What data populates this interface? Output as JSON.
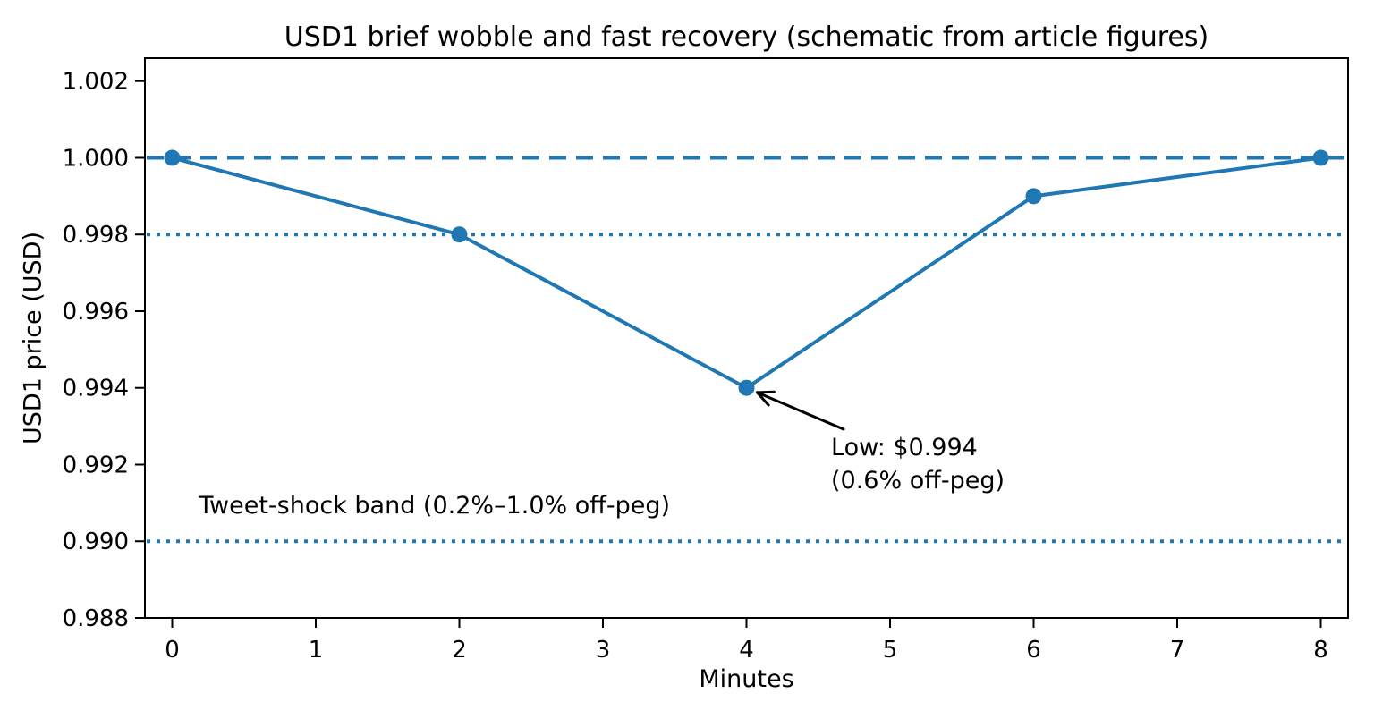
{
  "chart_data": {
    "type": "line",
    "title": "USD1 brief wobble and fast recovery (schematic from article figures)",
    "xlabel": "Minutes",
    "ylabel": "USD1 price (USD)",
    "x": [
      0,
      2,
      4,
      6,
      8
    ],
    "y": [
      1.0,
      0.998,
      0.994,
      0.999,
      1.0
    ],
    "xlim": [
      -0.19,
      8.19
    ],
    "ylim": [
      0.988,
      1.0026
    ],
    "xticks": [
      0,
      1,
      2,
      3,
      4,
      5,
      6,
      7,
      8
    ],
    "yticks": [
      0.988,
      0.99,
      0.992,
      0.994,
      0.996,
      0.998,
      1.0,
      1.002
    ],
    "ytick_labels": [
      "0.988",
      "0.990",
      "0.992",
      "0.994",
      "0.996",
      "0.998",
      "1.000",
      "1.002"
    ],
    "grid": false,
    "legend": null,
    "reference_lines": [
      {
        "y": 1.0,
        "style": "dashed",
        "name": "peg-line"
      },
      {
        "y": 0.998,
        "style": "dotted",
        "name": "band-upper-line"
      },
      {
        "y": 0.99,
        "style": "dotted",
        "name": "band-lower-line"
      }
    ],
    "annotation": {
      "text_line1": "Low: $0.994",
      "text_line2": "(0.6% off-peg)",
      "target": {
        "x": 4,
        "y": 0.994
      }
    },
    "band_label": "Tweet-shock band (0.2%–1.0% off-peg)",
    "colors": {
      "series": "#1f77b4",
      "reference": "#1f77b4",
      "axis": "#000000",
      "text": "#000000",
      "background": "#ffffff"
    }
  }
}
